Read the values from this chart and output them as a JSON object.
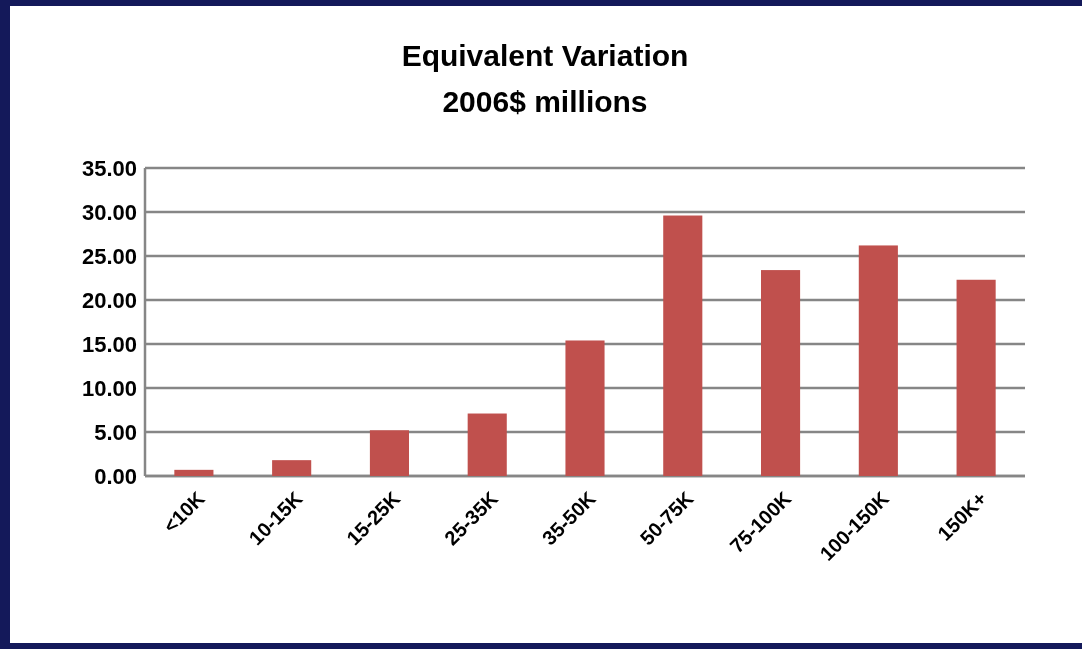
{
  "chart_data": {
    "type": "bar",
    "title": "Equivalent Variation",
    "subtitle": "2006$ millions",
    "categories": [
      "<10K",
      "10-15K",
      "15-25K",
      "25-35K",
      "35-50K",
      "50-75K",
      "75-100K",
      "100-150K",
      "150K+"
    ],
    "values": [
      0.7,
      1.8,
      5.2,
      7.1,
      15.4,
      29.6,
      23.4,
      26.2,
      22.3
    ],
    "color": "#c0504d",
    "ylim": [
      0,
      35
    ],
    "yticks": [
      {
        "value": 0,
        "label": "0.00"
      },
      {
        "value": 5,
        "label": "5.00"
      },
      {
        "value": 10,
        "label": "10.00"
      },
      {
        "value": 15,
        "label": "15.00"
      },
      {
        "value": 20,
        "label": "20.00"
      },
      {
        "value": 25,
        "label": "25.00"
      },
      {
        "value": 30,
        "label": "30.00"
      },
      {
        "value": 35,
        "label": "35.00"
      }
    ],
    "grid": "y"
  }
}
